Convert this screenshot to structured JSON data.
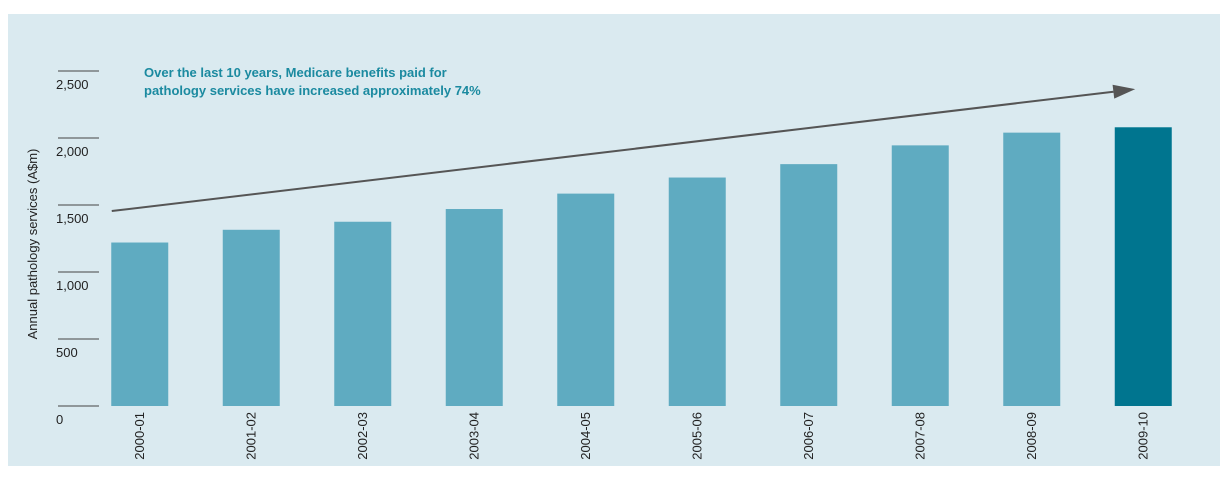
{
  "chart_data": {
    "type": "bar",
    "categories": [
      "2000-01",
      "2001-02",
      "2002-03",
      "2003-04",
      "2004-05",
      "2005-06",
      "2006-07",
      "2007-08",
      "2008-09",
      "2009-10"
    ],
    "values": [
      1220,
      1315,
      1375,
      1470,
      1585,
      1705,
      1805,
      1945,
      2040,
      2080
    ],
    "highlight_index": 9,
    "xlabel": "",
    "ylabel": "Annual pathology services (A$m)",
    "ylim": [
      0,
      2500
    ],
    "yticks": [
      0,
      500,
      1000,
      1500,
      2000,
      2500
    ],
    "ytick_labels": [
      "0",
      "500",
      "1,000",
      "1,500",
      "2,000",
      "2,500"
    ],
    "annotation": {
      "line1": "Over the last 10 years, Medicare benefits paid for",
      "line2": "pathology services have increased approximately 74%"
    },
    "trend_arrow": {
      "from_value": 1470,
      "to_value": 2350
    },
    "grid": false,
    "colors": {
      "bar": "#5fabc1",
      "highlight_bar": "#00758f",
      "background": "#daeaf0",
      "arrow": "#555555",
      "annotation_text": "#1b8aa0"
    }
  }
}
